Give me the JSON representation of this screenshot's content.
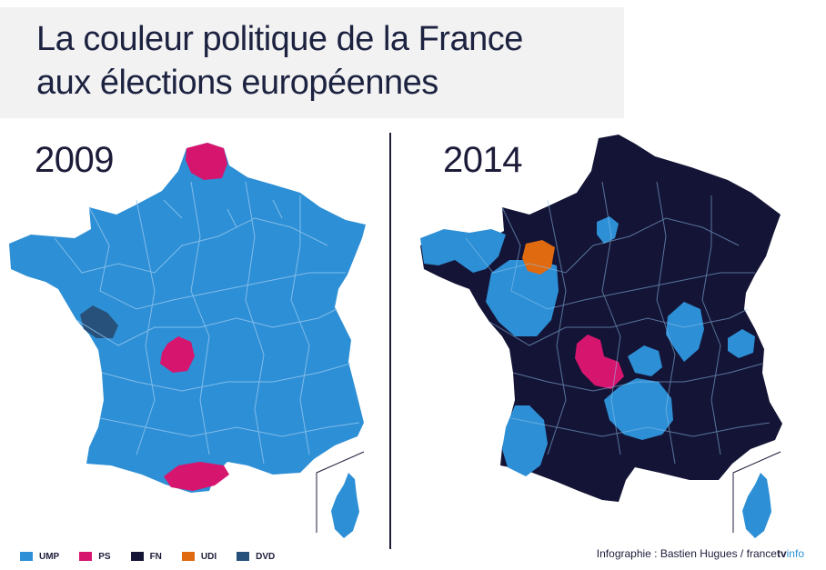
{
  "title": {
    "line1": "La couleur politique de la France",
    "line2": "aux élections européennes"
  },
  "maps": [
    {
      "year": "2009",
      "majority_party": "UMP"
    },
    {
      "year": "2014",
      "majority_party": "FN"
    }
  ],
  "legend": [
    {
      "label": "UMP",
      "color": "#2d8fd5"
    },
    {
      "label": "PS",
      "color": "#d6156e"
    },
    {
      "label": "FN",
      "color": "#141436"
    },
    {
      "label": "UDI",
      "color": "#e06a10"
    },
    {
      "label": "DVD",
      "color": "#27517a"
    }
  ],
  "credit": {
    "text": "Infographie : Bastien Hugues",
    "separator": "/",
    "brand_part1": "france",
    "brand_part2": "tv",
    "brand_part3": "info"
  },
  "colors": {
    "ump": "#2d8fd5",
    "ps": "#d6156e",
    "fn": "#141436",
    "udi": "#e06a10",
    "dvd": "#27517a",
    "border": "#8fc4ee"
  }
}
